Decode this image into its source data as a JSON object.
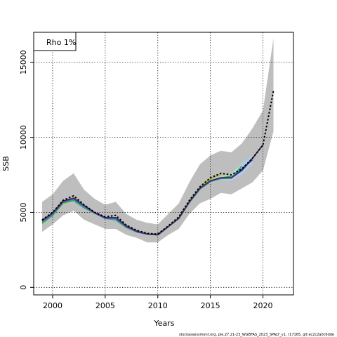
{
  "chart_data": {
    "type": "line",
    "title": "",
    "xlabel": "Years",
    "ylabel": "SSB",
    "xlim": [
      1998.2,
      2022.9
    ],
    "ylim": [
      -500,
      17000
    ],
    "x_ticks": [
      2000,
      2005,
      2010,
      2015,
      2020
    ],
    "y_ticks": [
      0,
      5000,
      10000,
      15000
    ],
    "x_tick_labels": [
      "2000",
      "2005",
      "2010",
      "2015",
      "2020"
    ],
    "y_tick_labels": [
      "0",
      "5000",
      "10000",
      "15000"
    ],
    "grid": true,
    "legend": {
      "position": "top-left",
      "entries": [
        "Rho 1%"
      ]
    },
    "footer_text": "stockassessment.org, ple.27.21-23_WGBFAS_2023_SPALY_v1, r17165, git:ec2c2a0c6dde",
    "band": {
      "color": "#bebebe",
      "x": [
        1999,
        2000,
        2001,
        2002,
        2003,
        2004,
        2005,
        2006,
        2007,
        2008,
        2009,
        2010,
        2011,
        2012,
        2013,
        2014,
        2015,
        2016,
        2017,
        2018,
        2019,
        2020,
        2021
      ],
      "upper": [
        5700,
        6200,
        7100,
        7600,
        6500,
        5900,
        5500,
        5700,
        4900,
        4500,
        4300,
        4200,
        4900,
        5600,
        7000,
        8200,
        8800,
        9100,
        9000,
        9600,
        10600,
        11800,
        16600
      ],
      "lower": [
        3700,
        4200,
        4800,
        5100,
        4500,
        4200,
        3900,
        3900,
        3500,
        3300,
        3000,
        3000,
        3500,
        3900,
        4900,
        5600,
        5900,
        6300,
        6200,
        6600,
        7000,
        7800,
        10400
      ]
    },
    "series": [
      {
        "color": "#000000",
        "dashed": true,
        "x": [
          1999,
          2000,
          2001,
          2002,
          2003,
          2004,
          2005,
          2006,
          2007,
          2008,
          2009,
          2010,
          2011,
          2012,
          2013,
          2014,
          2015,
          2016,
          2017,
          2018,
          2019,
          2020,
          2021
        ],
        "values": [
          4500,
          5000,
          5800,
          6100,
          5500,
          5000,
          4700,
          4800,
          4150,
          3800,
          3600,
          3550,
          4100,
          4700,
          5800,
          6700,
          7300,
          7600,
          7500,
          7900,
          8600,
          9500,
          13100
        ]
      },
      {
        "color": "#4a235a",
        "dashed": false,
        "x": [
          1999,
          2000,
          2001,
          2002,
          2003,
          2004,
          2005,
          2006,
          2007,
          2008,
          2009,
          2010,
          2011,
          2012,
          2013,
          2014,
          2015,
          2016,
          2017,
          2018,
          2019,
          2020
        ],
        "values": [
          4450,
          4950,
          5750,
          5950,
          5450,
          4980,
          4650,
          4650,
          4100,
          3750,
          3550,
          3500,
          4050,
          4600,
          5700,
          6600,
          7100,
          7300,
          7300,
          7800,
          8600,
          9500
        ]
      },
      {
        "color": "#3b62c8",
        "dashed": false,
        "x": [
          1999,
          2000,
          2001,
          2002,
          2003,
          2004,
          2005,
          2006,
          2007,
          2008,
          2009,
          2010,
          2011,
          2012,
          2013,
          2014,
          2015,
          2016,
          2017,
          2018,
          2019
        ],
        "values": [
          4400,
          4900,
          5700,
          5900,
          5400,
          4950,
          4600,
          4600,
          4050,
          3700,
          3550,
          3500,
          4050,
          4600,
          5700,
          6600,
          7100,
          7300,
          7300,
          7900,
          8500
        ]
      },
      {
        "color": "#27b1b5",
        "dashed": false,
        "x": [
          1999,
          2000,
          2001,
          2002,
          2003,
          2004,
          2005,
          2006,
          2007,
          2008,
          2009,
          2010,
          2011,
          2012,
          2013,
          2014,
          2015,
          2016,
          2017,
          2018
        ],
        "values": [
          4350,
          4850,
          5700,
          5850,
          5350,
          4950,
          4600,
          4550,
          4050,
          3700,
          3550,
          3500,
          4050,
          4600,
          5650,
          6550,
          7050,
          7250,
          7300,
          8100
        ]
      },
      {
        "color": "#2e9e3f",
        "dashed": false,
        "x": [
          1999,
          2000,
          2001,
          2002,
          2003,
          2004,
          2005,
          2006,
          2007,
          2008,
          2009,
          2010,
          2011,
          2012,
          2013,
          2014,
          2015,
          2016,
          2017
        ],
        "values": [
          4300,
          4800,
          5650,
          5800,
          5300,
          4950,
          4600,
          4500,
          4000,
          3700,
          3550,
          3550,
          4050,
          4600,
          5650,
          6550,
          7050,
          7300,
          7400
        ]
      },
      {
        "color": "#9abf2a",
        "dashed": false,
        "x": [
          1999,
          2000,
          2001,
          2002,
          2003,
          2004,
          2005,
          2006,
          2007,
          2008,
          2009,
          2010,
          2011,
          2012,
          2013,
          2014,
          2015,
          2016
        ],
        "values": [
          4250,
          4800,
          5600,
          5800,
          5300,
          4950,
          4600,
          4500,
          4000,
          3700,
          3550,
          3550,
          4050,
          4650,
          5700,
          6650,
          7250,
          7550
        ]
      }
    ],
    "light_bands": [
      {
        "color": "#a9cff0",
        "x": [
          2016,
          2017,
          2018,
          2019
        ],
        "upper": [
          7350,
          7500,
          8300,
          8800
        ],
        "lower": [
          7150,
          7100,
          7500,
          8200
        ]
      },
      {
        "color": "#b7e3b2",
        "x": [
          2016,
          2017,
          2018
        ],
        "upper": [
          7400,
          7600,
          8250
        ],
        "lower": [
          7200,
          7250,
          7800
        ]
      }
    ]
  }
}
